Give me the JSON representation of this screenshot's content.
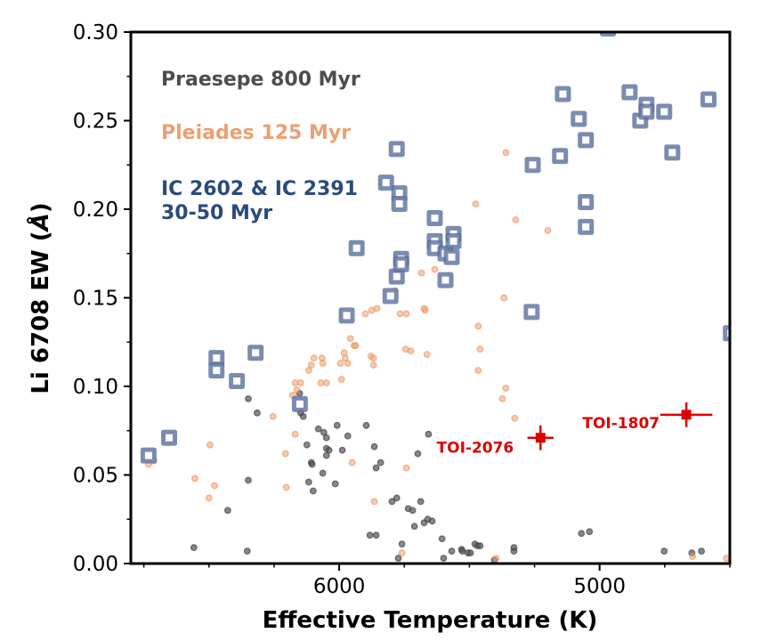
{
  "chart_data": {
    "type": "scatter",
    "xlabel": "Effective Temperature (K)",
    "ylabel_main": "Li 6708 EW (",
    "ylabel_unit": "Å",
    "ylabel_close": ")",
    "xlim": [
      6800,
      4500
    ],
    "ylim": [
      0.0,
      0.3
    ],
    "x_inverted": true,
    "grid": false,
    "x_ticks": [
      6000,
      5000
    ],
    "x_tick_labels": [
      "6000",
      "5000"
    ],
    "x_minor_step": 250,
    "y_ticks": [
      0.0,
      0.05,
      0.1,
      0.15,
      0.2,
      0.25,
      0.3
    ],
    "y_tick_labels": [
      "0.00",
      "0.05",
      "0.10",
      "0.15",
      "0.20",
      "0.25",
      "0.30"
    ],
    "y_minor_step": 0.025,
    "legend_placement": "top-left",
    "legend": [
      {
        "lines": [
          "Praesepe 800 Myr"
        ],
        "color": "#4d4d4d"
      },
      {
        "lines": [
          "Pleiades 125 Myr"
        ],
        "color": "#eba074"
      },
      {
        "lines": [
          "IC 2602 & IC 2391",
          "30-50 Myr"
        ],
        "color": "#2b4a80"
      }
    ],
    "series": [
      {
        "name": "Praesepe 800 Myr",
        "marker": "circle",
        "color": "#555555",
        "points": [
          [
            6349,
            0.093
          ],
          [
            6315,
            0.085
          ],
          [
            6152,
            0.096
          ],
          [
            6148,
            0.085
          ],
          [
            6138,
            0.083
          ],
          [
            6080,
            0.076
          ],
          [
            6059,
            0.074
          ],
          [
            6049,
            0.071
          ],
          [
            6008,
            0.078
          ],
          [
            5967,
            0.072
          ],
          [
            5896,
            0.078
          ],
          [
            6124,
            0.067
          ],
          [
            6049,
            0.065
          ],
          [
            6039,
            0.064
          ],
          [
            6049,
            0.061
          ],
          [
            5988,
            0.064
          ],
          [
            5865,
            0.066
          ],
          [
            6107,
            0.057
          ],
          [
            6104,
            0.056
          ],
          [
            6063,
            0.051
          ],
          [
            6117,
            0.046
          ],
          [
            6100,
            0.041
          ],
          [
            6015,
            0.045
          ],
          [
            5841,
            0.057
          ],
          [
            5858,
            0.054
          ],
          [
            6349,
            0.047
          ],
          [
            6428,
            0.03
          ],
          [
            6558,
            0.009
          ],
          [
            6353,
            0.007
          ],
          [
            5797,
            0.035
          ],
          [
            5779,
            0.037
          ],
          [
            5735,
            0.031
          ],
          [
            5718,
            0.03
          ],
          [
            5687,
            0.035
          ],
          [
            5711,
            0.021
          ],
          [
            5674,
            0.023
          ],
          [
            5660,
            0.025
          ],
          [
            5643,
            0.024
          ],
          [
            5882,
            0.016
          ],
          [
            5858,
            0.016
          ],
          [
            5759,
            0.011
          ],
          [
            5773,
            0.003
          ],
          [
            5698,
            0.062
          ],
          [
            5657,
            0.073
          ],
          [
            5605,
            0.014
          ],
          [
            5599,
            0.003
          ],
          [
            5568,
            0.007
          ],
          [
            5530,
            0.008
          ],
          [
            5527,
            0.007
          ],
          [
            5506,
            0.006
          ],
          [
            5496,
            0.006
          ],
          [
            5479,
            0.011
          ],
          [
            5469,
            0.01
          ],
          [
            5459,
            0.01
          ],
          [
            5404,
            0.002
          ],
          [
            5329,
            0.009
          ],
          [
            5329,
            0.007
          ],
          [
            5070,
            0.017
          ],
          [
            5039,
            0.018
          ],
          [
            4752,
            0.007
          ],
          [
            4646,
            0.006
          ],
          [
            4609,
            0.007
          ]
        ]
      },
      {
        "name": "Pleiades 125 Myr",
        "marker": "circle",
        "color": "#f0a070",
        "points": [
          [
            6732,
            0.056
          ],
          [
            6711,
            0.058
          ],
          [
            6554,
            0.048
          ],
          [
            6496,
            0.067
          ],
          [
            6479,
            0.044
          ],
          [
            6500,
            0.037
          ],
          [
            6254,
            0.083
          ],
          [
            6206,
            0.062
          ],
          [
            6203,
            0.043
          ],
          [
            6169,
            0.073
          ],
          [
            6179,
            0.095
          ],
          [
            6169,
            0.102
          ],
          [
            6148,
            0.102
          ],
          [
            6162,
            0.098
          ],
          [
            6117,
            0.109
          ],
          [
            6107,
            0.112
          ],
          [
            6097,
            0.116
          ],
          [
            6066,
            0.116
          ],
          [
            6063,
            0.113
          ],
          [
            6070,
            0.102
          ],
          [
            6049,
            0.102
          ],
          [
            5991,
            0.104
          ],
          [
            5995,
            0.113
          ],
          [
            5981,
            0.119
          ],
          [
            5977,
            0.116
          ],
          [
            5967,
            0.113
          ],
          [
            5957,
            0.127
          ],
          [
            5943,
            0.123
          ],
          [
            5937,
            0.123
          ],
          [
            5899,
            0.141
          ],
          [
            5875,
            0.143
          ],
          [
            5855,
            0.144
          ],
          [
            5878,
            0.117
          ],
          [
            5868,
            0.116
          ],
          [
            5868,
            0.112
          ],
          [
            5950,
            0.057
          ],
          [
            5865,
            0.035
          ],
          [
            5742,
            0.054
          ],
          [
            5766,
            0.141
          ],
          [
            5742,
            0.141
          ],
          [
            5670,
            0.143
          ],
          [
            5745,
            0.121
          ],
          [
            5725,
            0.12
          ],
          [
            5663,
            0.118
          ],
          [
            5759,
            0.006
          ],
          [
            5367,
            0.15
          ],
          [
            5466,
            0.134
          ],
          [
            5459,
            0.121
          ],
          [
            5466,
            0.109
          ],
          [
            5360,
            0.099
          ],
          [
            5373,
            0.093
          ],
          [
            5326,
            0.082
          ],
          [
            5397,
            0.003
          ],
          [
            4513,
            0.003
          ],
          [
            4643,
            0.004
          ],
          [
            5360,
            0.232
          ],
          [
            5476,
            0.203
          ],
          [
            5322,
            0.194
          ],
          [
            5199,
            0.188
          ],
          [
            5684,
            0.164
          ],
          [
            5633,
            0.166
          ],
          [
            5578,
            0.162
          ],
          [
            5786,
            0.154
          ],
          [
            5674,
            0.144
          ]
        ]
      },
      {
        "name": "IC 2602 & IC 2391 30-50 Myr",
        "marker": "square",
        "color": "#5a6f9c",
        "points": [
          [
            6732,
            0.061
          ],
          [
            6653,
            0.071
          ],
          [
            6471,
            0.116
          ],
          [
            6471,
            0.109
          ],
          [
            6393,
            0.103
          ],
          [
            6321,
            0.119
          ],
          [
            6151,
            0.09
          ],
          [
            5971,
            0.14
          ],
          [
            5933,
            0.178
          ],
          [
            5803,
            0.151
          ],
          [
            5779,
            0.162
          ],
          [
            5762,
            0.172
          ],
          [
            5762,
            0.169
          ],
          [
            5779,
            0.234
          ],
          [
            5820,
            0.215
          ],
          [
            5769,
            0.209
          ],
          [
            5769,
            0.203
          ],
          [
            5633,
            0.195
          ],
          [
            5633,
            0.182
          ],
          [
            5633,
            0.178
          ],
          [
            5592,
            0.175
          ],
          [
            5592,
            0.16
          ],
          [
            5568,
            0.173
          ],
          [
            5561,
            0.186
          ],
          [
            5561,
            0.182
          ],
          [
            5261,
            0.142
          ],
          [
            5257,
            0.225
          ],
          [
            5152,
            0.23
          ],
          [
            5141,
            0.265
          ],
          [
            5080,
            0.251
          ],
          [
            5053,
            0.239
          ],
          [
            5053,
            0.204
          ],
          [
            5053,
            0.19
          ],
          [
            4968,
            0.302
          ],
          [
            4885,
            0.266
          ],
          [
            4844,
            0.25
          ],
          [
            4820,
            0.259
          ],
          [
            4820,
            0.255
          ],
          [
            4752,
            0.255
          ],
          [
            4721,
            0.232
          ],
          [
            4582,
            0.262
          ],
          [
            4496,
            0.13
          ]
        ]
      }
    ],
    "targets": [
      {
        "label": "TOI-2076",
        "teff": 5227,
        "teff_err": 50,
        "ew": 0.071,
        "ew_err": 0.007,
        "color": "#dd0000"
      },
      {
        "label": "TOI-1807",
        "teff": 4667,
        "teff_err": 100,
        "ew": 0.084,
        "ew_err": 0.007,
        "color": "#dd0000"
      }
    ]
  }
}
